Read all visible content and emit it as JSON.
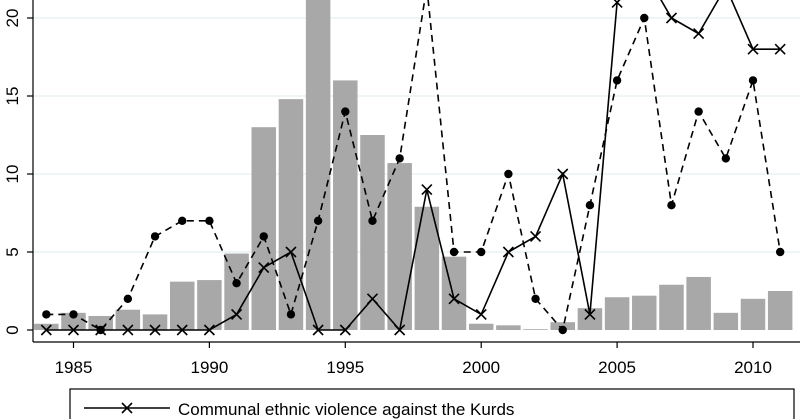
{
  "chart_data": {
    "type": "bar+line",
    "x_ticks": [
      1985,
      1990,
      1995,
      2000,
      2005,
      2010
    ],
    "y_ticks": [
      0,
      5,
      10,
      15,
      20
    ],
    "xlim": [
      1983.6,
      2011.5
    ],
    "ylim": [
      -0.6,
      21
    ],
    "grid": "horizontal",
    "bars": {
      "color": "#a8a8a8",
      "x": [
        1984,
        1985,
        1986,
        1987,
        1988,
        1989,
        1990,
        1991,
        1992,
        1993,
        1994,
        1995,
        1996,
        1997,
        1998,
        1999,
        2000,
        2001,
        2002,
        2003,
        2004,
        2005,
        2006,
        2007,
        2008,
        2009,
        2010,
        2011
      ],
      "values": [
        0.4,
        1.1,
        0.9,
        1.3,
        1.0,
        3.1,
        3.2,
        4.9,
        13.0,
        14.8,
        21.5,
        16.0,
        12.5,
        10.7,
        7.9,
        4.7,
        0.4,
        0.3,
        0.05,
        0.5,
        1.4,
        2.1,
        2.2,
        2.9,
        3.4,
        1.1,
        2.0,
        2.5
      ]
    },
    "series": [
      {
        "name": "Communal ethnic violence against the Kurds",
        "style": "solid",
        "marker": "x",
        "x": [
          1984,
          1985,
          1986,
          1987,
          1988,
          1989,
          1990,
          1991,
          1992,
          1993,
          1994,
          1995,
          1996,
          1997,
          1998,
          1999,
          2000,
          2001,
          2002,
          2003,
          2004,
          2005,
          2006,
          2007,
          2008,
          2009,
          2010,
          2011
        ],
        "values": [
          0,
          0,
          0,
          0,
          0,
          0,
          0,
          1,
          4,
          5,
          0,
          0,
          2,
          0,
          9,
          2,
          1,
          5,
          6,
          10,
          1,
          21,
          23,
          20,
          19,
          22,
          18,
          18
        ]
      },
      {
        "style": "dashed",
        "marker": "circle",
        "x": [
          1984,
          1985,
          1986,
          1987,
          1988,
          1989,
          1990,
          1991,
          1992,
          1993,
          1994,
          1995,
          1996,
          1997,
          1998,
          1999,
          2000,
          2001,
          2002,
          2003,
          2004,
          2005,
          2006,
          2007,
          2008,
          2009,
          2010,
          2011
        ],
        "values": [
          1,
          1,
          0,
          2,
          6,
          7,
          7,
          3,
          6,
          1,
          7,
          14,
          7,
          11,
          22,
          5,
          5,
          10,
          2,
          0,
          8,
          16,
          20,
          8,
          14,
          11,
          16,
          5
        ]
      }
    ],
    "legend": {
      "position": "bottom",
      "entries": [
        "Communal ethnic violence against the Kurds"
      ]
    }
  }
}
